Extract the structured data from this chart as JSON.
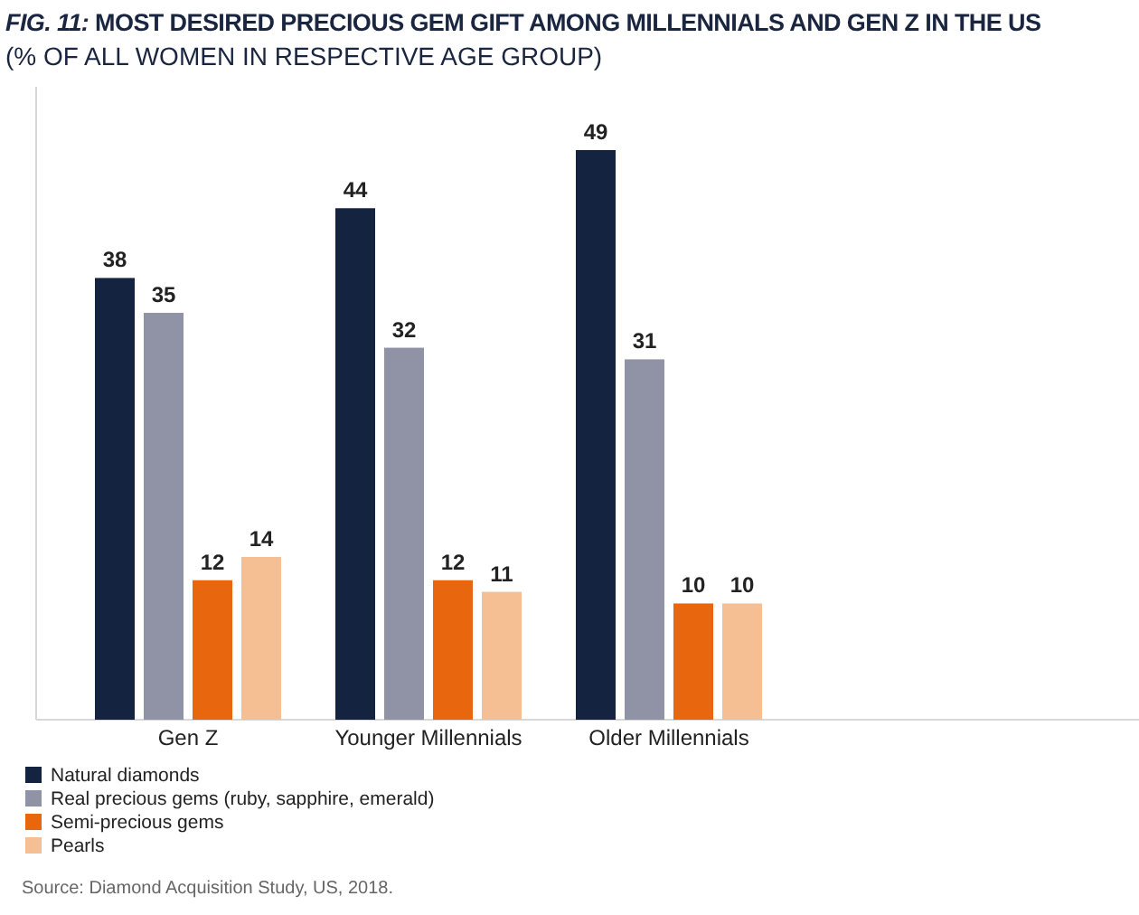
{
  "chart_data": {
    "type": "bar",
    "title": "FIG. 11: MOST DESIRED PRECIOUS GEM GIFT AMONG MILLENNIALS AND GEN Z IN THE US",
    "subtitle": "(% OF ALL WOMEN IN RESPECTIVE AGE GROUP)",
    "categories": [
      "Gen Z",
      "Younger Millennials",
      "Older Millennials"
    ],
    "series": [
      {
        "name": "Natural diamonds",
        "color": "#14233f",
        "values": [
          38,
          44,
          49
        ]
      },
      {
        "name": "Real precious gems (ruby, sapphire, emerald)",
        "color": "#8f93a5",
        "values": [
          35,
          32,
          31
        ]
      },
      {
        "name": "Semi-precious gems",
        "color": "#e8660d",
        "values": [
          12,
          12,
          10
        ]
      },
      {
        "name": "Pearls",
        "color": "#f6bf93",
        "values": [
          14,
          11,
          10
        ]
      }
    ],
    "data_labels": true,
    "legend": "bottom left",
    "annotations": [
      "Source: Diamond Acquisition Study, US, 2018."
    ]
  }
}
